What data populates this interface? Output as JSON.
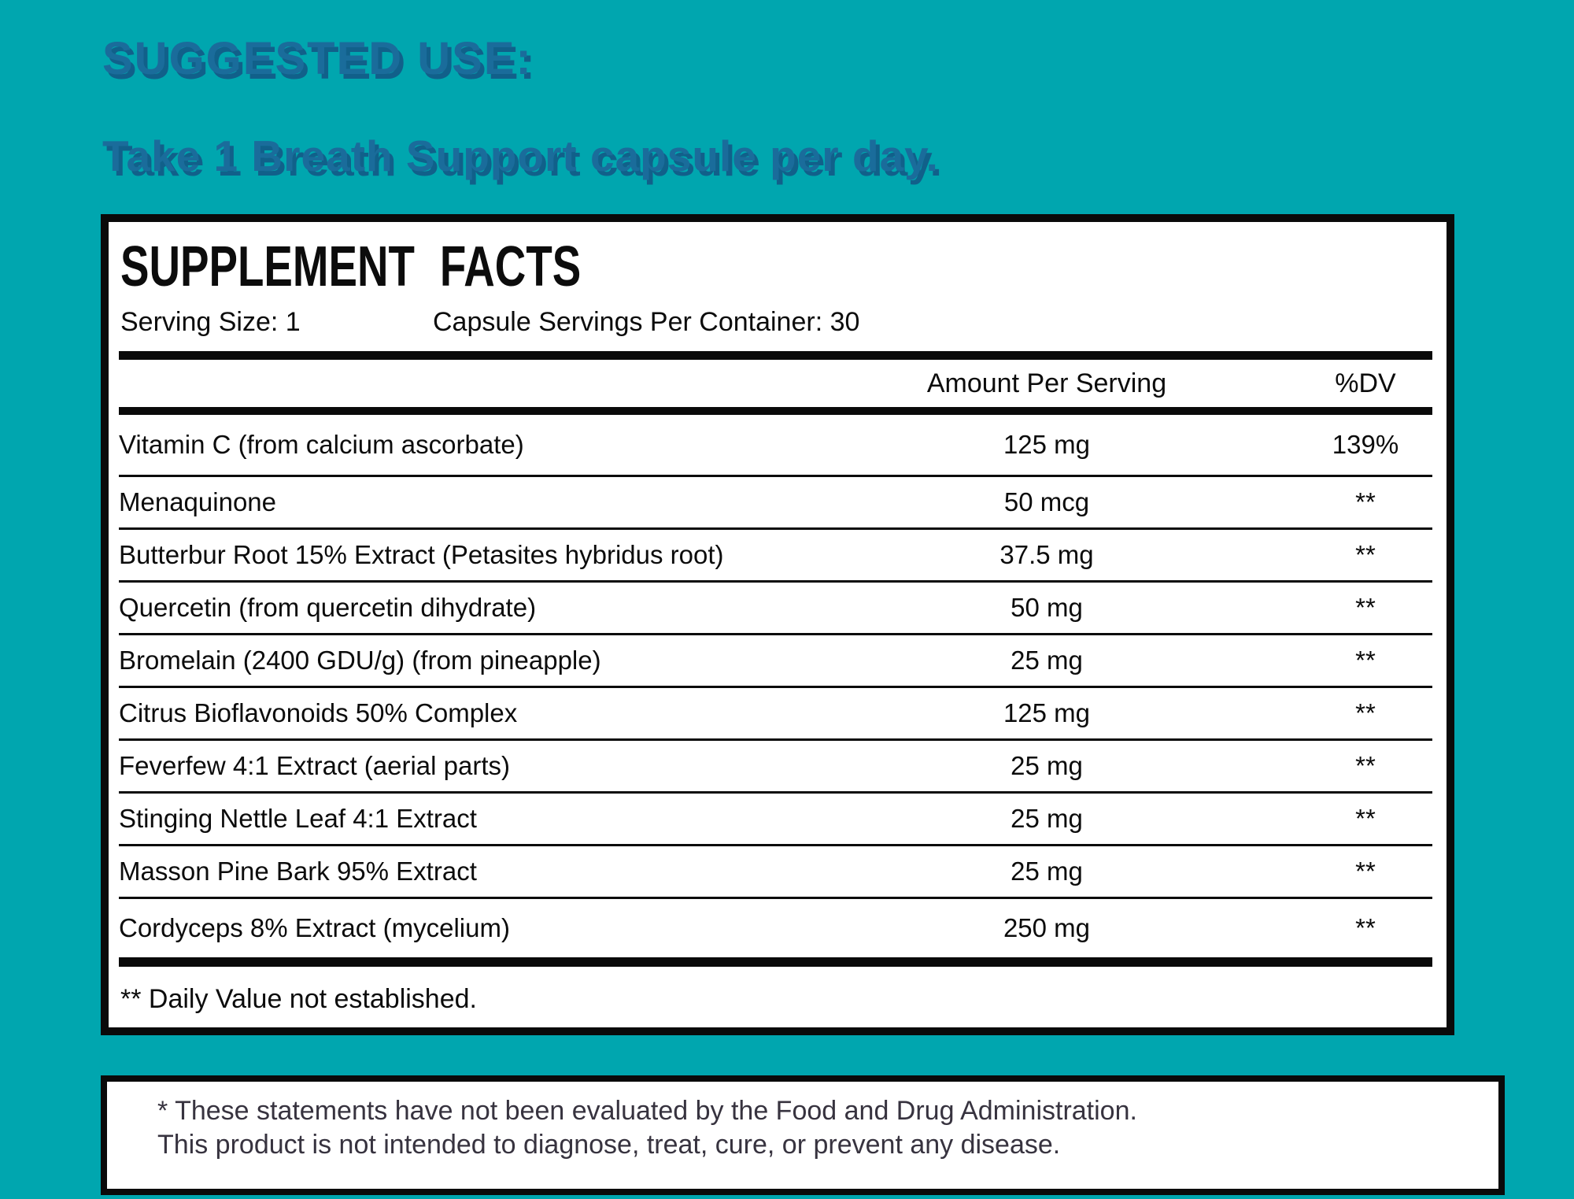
{
  "colors": {
    "background_teal": "#00A6AF",
    "heading_blue": "#1A6C9B",
    "heading_shadow_blue": "#11608A",
    "panel_background": "#FFFFFF",
    "panel_border_black": "#0A0A0A",
    "body_text": "#0C0C0C",
    "disclaimer_text": "#37333F"
  },
  "suggested_use": {
    "heading": "SUGGESTED USE:",
    "instruction": "Take 1 Breath Support capsule per day."
  },
  "supplement_facts": {
    "title": "SUPPLEMENT FACTS",
    "serving_size_label": "Serving Size: 1",
    "servings_per_container_label": "Capsule Servings Per Container: 30",
    "columns": {
      "amount": "Amount Per Serving",
      "dv": "%DV"
    },
    "rows": [
      {
        "name": "Vitamin C (from calcium ascorbate)",
        "amount": "125 mg",
        "dv": "139%"
      },
      {
        "name": "Menaquinone",
        "amount": "50 mcg",
        "dv": "**"
      },
      {
        "name": "Butterbur Root 15% Extract (Petasites hybridus root)",
        "amount": "37.5 mg",
        "dv": "**"
      },
      {
        "name": "Quercetin (from quercetin dihydrate)",
        "amount": "50 mg",
        "dv": "**"
      },
      {
        "name": "Bromelain (2400 GDU/g) (from pineapple)",
        "amount": "25 mg",
        "dv": "**"
      },
      {
        "name": "Citrus Bioflavonoids 50% Complex",
        "amount": "125 mg",
        "dv": "**"
      },
      {
        "name": "Feverfew 4:1 Extract (aerial parts)",
        "amount": "25 mg",
        "dv": "**"
      },
      {
        "name": "Stinging Nettle Leaf 4:1 Extract",
        "amount": "25 mg",
        "dv": "**"
      },
      {
        "name": "Masson Pine Bark 95% Extract",
        "amount": "25 mg",
        "dv": "**"
      },
      {
        "name": "Cordyceps 8% Extract (mycelium)",
        "amount": "250 mg",
        "dv": "**"
      }
    ],
    "footnote": "** Daily Value not established."
  },
  "disclaimer": {
    "line1": "* These statements have not been evaluated by the Food and Drug Administration.",
    "line2": "This product is not intended to diagnose, treat, cure, or prevent any disease."
  }
}
